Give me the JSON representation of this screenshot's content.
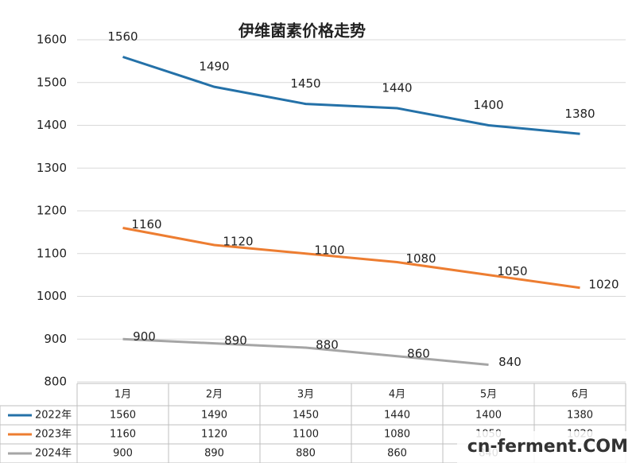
{
  "chart_data": {
    "type": "line",
    "title": "伊维菌素价格走势",
    "categories": [
      "1月",
      "2月",
      "3月",
      "4月",
      "5月",
      "6月"
    ],
    "series": [
      {
        "name": "2022年",
        "color": "#2471a8",
        "values": [
          1560,
          1490,
          1450,
          1440,
          1400,
          1380
        ]
      },
      {
        "name": "2023年",
        "color": "#ed7d31",
        "values": [
          1160,
          1120,
          1100,
          1080,
          1050,
          1020
        ]
      },
      {
        "name": "2024年",
        "color": "#a5a5a5",
        "values": [
          900,
          890,
          880,
          860,
          840,
          null
        ]
      }
    ],
    "ylim": [
      800,
      1600
    ],
    "yticks": [
      800,
      900,
      1000,
      1100,
      1200,
      1300,
      1400,
      1500,
      1600
    ],
    "grid": true,
    "watermark": "cn-ferment.COM"
  }
}
